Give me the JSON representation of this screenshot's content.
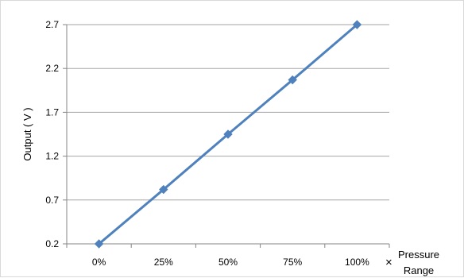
{
  "chart_data": {
    "type": "line",
    "x_ticks": [
      "0%",
      "25%",
      "50%",
      "75%",
      "100%"
    ],
    "y_ticks": [
      "0.2",
      "0.7",
      "1.2",
      "1.7",
      "2.2",
      "2.7"
    ],
    "ylim": [
      0.2,
      2.7
    ],
    "ylabel": "Output ( V )",
    "xlabel_suffix": "×",
    "xlabel_line1": "Pressure",
    "xlabel_line2": "Range",
    "grid": "horizontal",
    "series": [
      {
        "x": [
          "0%",
          "25%",
          "50%",
          "75%",
          "100%"
        ],
        "values": [
          0.2,
          0.82,
          1.45,
          2.07,
          2.7
        ],
        "color": "#4F81BD"
      }
    ]
  }
}
